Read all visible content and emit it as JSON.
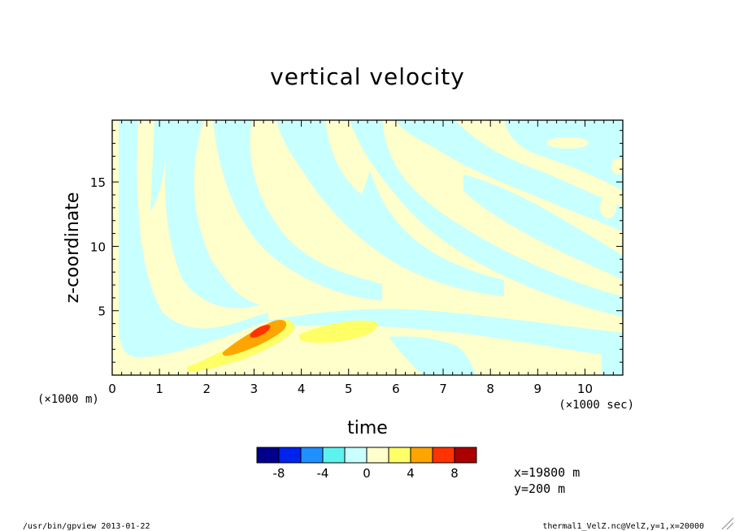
{
  "chart_data": {
    "type": "heatmap",
    "title": "vertical velocity",
    "xlabel": "time",
    "ylabel": "z-coordinate",
    "x_unit_note": "(×1000 sec)",
    "y_unit_note": "(×1000 m)",
    "xlim": [
      0,
      10.8
    ],
    "ylim": [
      0,
      19.8
    ],
    "x_ticks": [
      0,
      1,
      2,
      3,
      4,
      5,
      6,
      7,
      8,
      9,
      10
    ],
    "y_ticks": [
      5,
      10,
      15
    ],
    "colorbar": {
      "levels": [
        -10,
        -8,
        -6,
        -4,
        -2,
        0,
        2,
        4,
        6,
        8,
        10
      ],
      "colors": [
        "#00008b",
        "#0022ee",
        "#1e90ff",
        "#5ef2ee",
        "#c8ffff",
        "#ffffcc",
        "#ffff66",
        "#ffa500",
        "#ff3300",
        "#aa0000"
      ],
      "tick_labels": [
        "-8",
        "-4",
        "0",
        "4",
        "8"
      ]
    },
    "annotations": [
      "x=19800 m",
      "y=200 m"
    ]
  },
  "footer": {
    "left": "/usr/bin/gpview  2013-01-22",
    "right": "thermal1_VelZ.nc@VelZ,y=1,x=20000"
  }
}
